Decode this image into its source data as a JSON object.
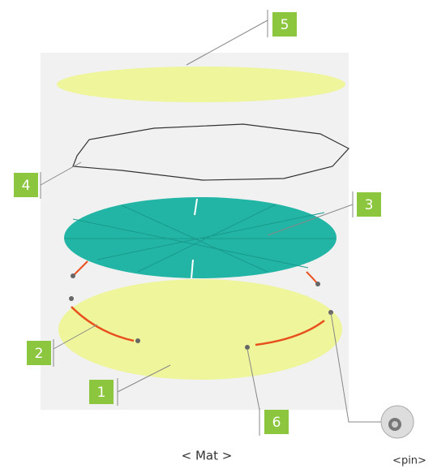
{
  "callouts": [
    "1",
    "2",
    "3",
    "4",
    "5",
    "6"
  ],
  "captions": {
    "mat": "< Mat >",
    "pin": "<pin>"
  }
}
